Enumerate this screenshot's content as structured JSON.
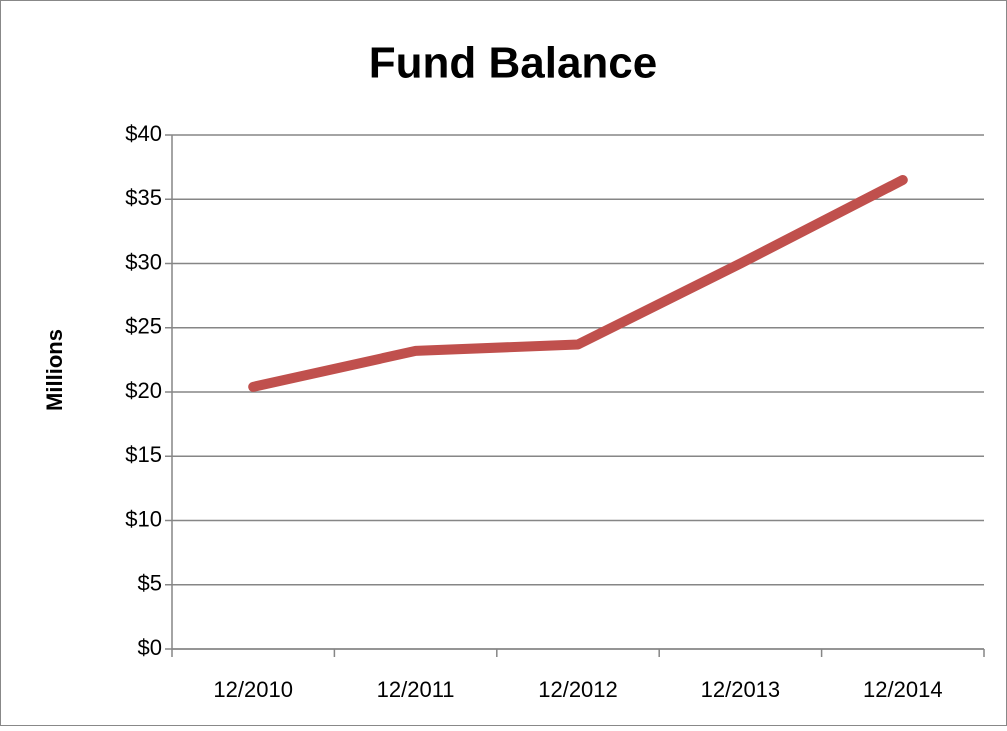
{
  "chart_data": {
    "type": "line",
    "title": "Fund Balance",
    "y_label": "Millions",
    "categories": [
      "12/2010",
      "12/2011",
      "12/2012",
      "12/2013",
      "12/2014"
    ],
    "series": [
      {
        "name": "Fund Balance",
        "color": "#c0504d",
        "values": [
          20.4,
          23.2,
          23.7,
          30.0,
          36.5
        ]
      }
    ],
    "ylim": [
      0,
      40
    ],
    "yticks": [
      {
        "value": 0,
        "label": "$0"
      },
      {
        "value": 5,
        "label": "$5"
      },
      {
        "value": 10,
        "label": "$10"
      },
      {
        "value": 15,
        "label": "$15"
      },
      {
        "value": 20,
        "label": "$20"
      },
      {
        "value": 25,
        "label": "$25"
      },
      {
        "value": 30,
        "label": "$30"
      },
      {
        "value": 35,
        "label": "$35"
      },
      {
        "value": 40,
        "label": "$40"
      }
    ],
    "grid": true,
    "legend": false
  }
}
